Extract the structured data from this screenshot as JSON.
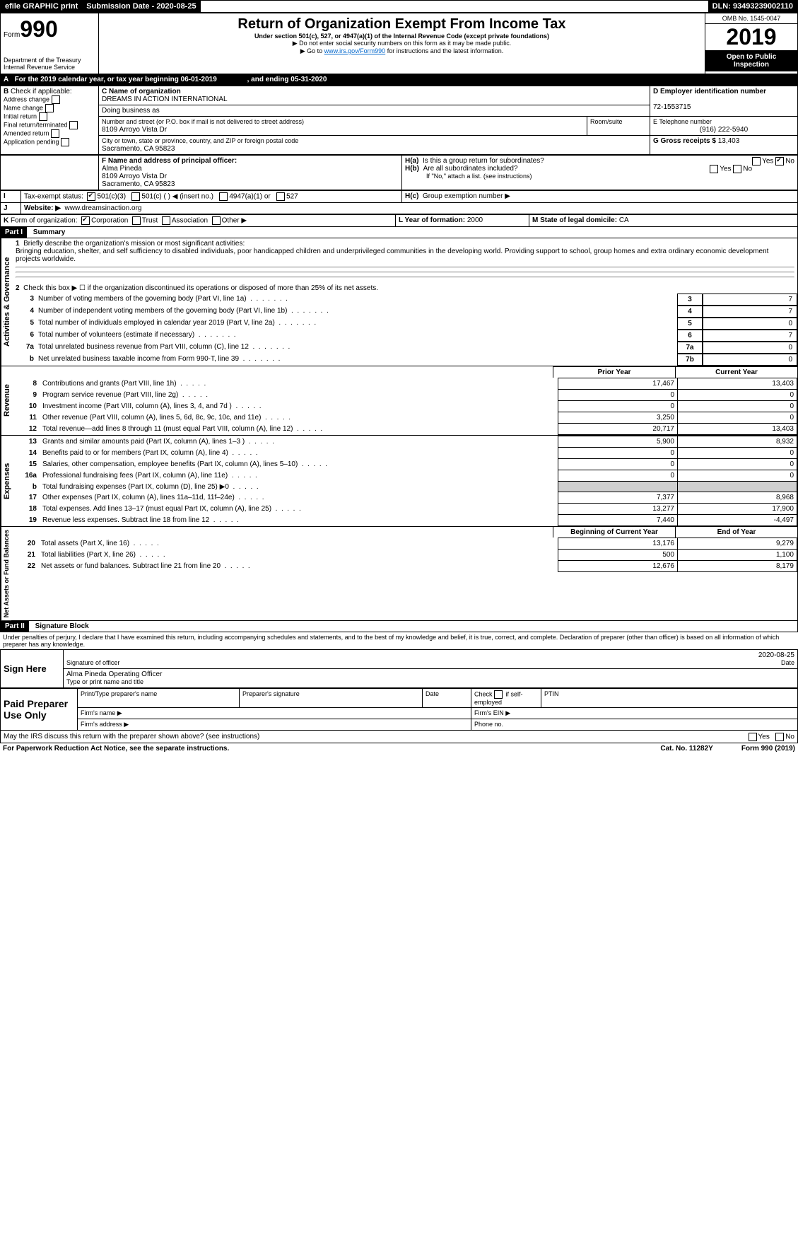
{
  "topbar": {
    "efile": "efile GRAPHIC print",
    "subdate_lbl": "Submission Date - 2020-08-25",
    "dln": "DLN: 93493239002110"
  },
  "header": {
    "form_word": "Form",
    "form_no": "990",
    "dept": "Department of the Treasury",
    "irs": "Internal Revenue Service",
    "title": "Return of Organization Exempt From Income Tax",
    "sub1": "Under section 501(c), 527, or 4947(a)(1) of the Internal Revenue Code (except private foundations)",
    "sub2": "▶ Do not enter social security numbers on this form as it may be made public.",
    "sub3a": "▶ Go to ",
    "sub3link": "www.irs.gov/Form990",
    "sub3b": " for instructions and the latest information.",
    "omb": "OMB No. 1545-0047",
    "year": "2019",
    "open": "Open to Public Inspection"
  },
  "A": {
    "text": "For the 2019 calendar year, or tax year beginning 06-01-2019",
    "mid": ", and ending 05-31-2020"
  },
  "B": {
    "label": "Check if applicable:",
    "opts": [
      "Address change",
      "Name change",
      "Initial return",
      "Final return/terminated",
      "Amended return",
      "Application pending"
    ]
  },
  "C": {
    "lbl": "C Name of organization",
    "name": "DREAMS IN ACTION INTERNATIONAL",
    "dba_lbl": "Doing business as",
    "dba": "",
    "street_lbl": "Number and street (or P.O. box if mail is not delivered to street address)",
    "street": "8109 Arroyo Vista Dr",
    "room_lbl": "Room/suite",
    "city_lbl": "City or town, state or province, country, and ZIP or foreign postal code",
    "city": "Sacramento, CA  95823"
  },
  "D": {
    "lbl": "D Employer identification number",
    "val": "72-1553715"
  },
  "E": {
    "lbl": "E Telephone number",
    "val": "(916) 222-5940"
  },
  "G": {
    "lbl": "G Gross receipts $ ",
    "val": "13,403"
  },
  "F": {
    "lbl": "F  Name and address of principal officer:",
    "name": "Alma Pineda",
    "l2": "8109 Arroyo Vista Dr",
    "l3": "Sacramento, CA  95823"
  },
  "H": {
    "a_lbl": "H(a)",
    "a_txt": "Is this a group return for subordinates?",
    "a_yes": "Yes",
    "a_no": "No",
    "b_lbl": "H(b)",
    "b_txt": "Are all subordinates included?",
    "b_note": "If \"No,\" attach a list. (see instructions)",
    "c_lbl": "H(c)",
    "c_txt": "Group exemption number ▶"
  },
  "I": {
    "lbl": "Tax-exempt status:",
    "o1": "501(c)(3)",
    "o2": "501(c) (  ) ◀ (insert no.)",
    "o3": "4947(a)(1) or",
    "o4": "527"
  },
  "J": {
    "lbl": "Website: ▶",
    "val": "www.dreamsinaction.org"
  },
  "K": {
    "lbl": "Form of organization:",
    "o1": "Corporation",
    "o2": "Trust",
    "o3": "Association",
    "o4": "Other ▶"
  },
  "L": {
    "lbl": "L Year of formation: ",
    "val": "2000"
  },
  "M": {
    "lbl": "M State of legal domicile: ",
    "val": "CA"
  },
  "partI": {
    "hdr": "Part I",
    "title": "Summary"
  },
  "summary": {
    "q1_lbl": "1",
    "q1": "Briefly describe the organization's mission or most significant activities:",
    "q1_ans": "Bringing education, shelter, and self sufficiency to disabled individuals, poor handicapped children and underprivileged communities in the developing world. Providing support to school, group homes and extra ordinary economic development projects worldwide.",
    "q2_lbl": "2",
    "q2": "Check this box ▶ ☐  if the organization discontinued its operations or disposed of more than 25% of its net assets.",
    "rows": [
      {
        "n": "3",
        "t": "Number of voting members of the governing body (Part VI, line 1a)",
        "box": "3",
        "v": "7"
      },
      {
        "n": "4",
        "t": "Number of independent voting members of the governing body (Part VI, line 1b)",
        "box": "4",
        "v": "7"
      },
      {
        "n": "5",
        "t": "Total number of individuals employed in calendar year 2019 (Part V, line 2a)",
        "box": "5",
        "v": "0"
      },
      {
        "n": "6",
        "t": "Total number of volunteers (estimate if necessary)",
        "box": "6",
        "v": "7"
      },
      {
        "n": "7a",
        "t": "Total unrelated business revenue from Part VIII, column (C), line 12",
        "box": "7a",
        "v": "0"
      },
      {
        "n": "b",
        "t": "Net unrelated business taxable income from Form 990-T, line 39",
        "box": "7b",
        "v": "0"
      }
    ]
  },
  "fin": {
    "py": "Prior Year",
    "cy": "Current Year",
    "bcy": "Beginning of Current Year",
    "eoy": "End of Year",
    "revenue": [
      {
        "n": "8",
        "t": "Contributions and grants (Part VIII, line 1h)",
        "p": "17,467",
        "c": "13,403"
      },
      {
        "n": "9",
        "t": "Program service revenue (Part VIII, line 2g)",
        "p": "0",
        "c": "0"
      },
      {
        "n": "10",
        "t": "Investment income (Part VIII, column (A), lines 3, 4, and 7d )",
        "p": "0",
        "c": "0"
      },
      {
        "n": "11",
        "t": "Other revenue (Part VIII, column (A), lines 5, 6d, 8c, 9c, 10c, and 11e)",
        "p": "3,250",
        "c": "0"
      },
      {
        "n": "12",
        "t": "Total revenue—add lines 8 through 11 (must equal Part VIII, column (A), line 12)",
        "p": "20,717",
        "c": "13,403"
      }
    ],
    "expenses": [
      {
        "n": "13",
        "t": "Grants and similar amounts paid (Part IX, column (A), lines 1–3 )",
        "p": "5,900",
        "c": "8,932"
      },
      {
        "n": "14",
        "t": "Benefits paid to or for members (Part IX, column (A), line 4)",
        "p": "0",
        "c": "0"
      },
      {
        "n": "15",
        "t": "Salaries, other compensation, employee benefits (Part IX, column (A), lines 5–10)",
        "p": "0",
        "c": "0"
      },
      {
        "n": "16a",
        "t": "Professional fundraising fees (Part IX, column (A), line 11e)",
        "p": "0",
        "c": "0"
      },
      {
        "n": "b",
        "t": "Total fundraising expenses (Part IX, column (D), line 25) ▶0",
        "p": "",
        "c": "",
        "gray": true
      },
      {
        "n": "17",
        "t": "Other expenses (Part IX, column (A), lines 11a–11d, 11f–24e)",
        "p": "7,377",
        "c": "8,968"
      },
      {
        "n": "18",
        "t": "Total expenses. Add lines 13–17 (must equal Part IX, column (A), line 25)",
        "p": "13,277",
        "c": "17,900"
      },
      {
        "n": "19",
        "t": "Revenue less expenses. Subtract line 18 from line 12",
        "p": "7,440",
        "c": "-4,497"
      }
    ],
    "netassets": [
      {
        "n": "20",
        "t": "Total assets (Part X, line 16)",
        "p": "13,176",
        "c": "9,279"
      },
      {
        "n": "21",
        "t": "Total liabilities (Part X, line 26)",
        "p": "500",
        "c": "1,100"
      },
      {
        "n": "22",
        "t": "Net assets or fund balances. Subtract line 21 from line 20",
        "p": "12,676",
        "c": "8,179"
      }
    ]
  },
  "partII": {
    "hdr": "Part II",
    "title": "Signature Block",
    "decl": "Under penalties of perjury, I declare that I have examined this return, including accompanying schedules and statements, and to the best of my knowledge and belief, it is true, correct, and complete. Declaration of preparer (other than officer) is based on all information of which preparer has any knowledge."
  },
  "sign": {
    "here": "Sign Here",
    "sig_lbl": "Signature of officer",
    "date_lbl": "Date",
    "date": "2020-08-25",
    "name": "Alma Pineda  Operating Officer",
    "name_lbl": "Type or print name and title"
  },
  "paid": {
    "title": "Paid Preparer Use Only",
    "c1": "Print/Type preparer's name",
    "c2": "Preparer's signature",
    "c3": "Date",
    "c4a": "Check",
    "c4b": "if self-employed",
    "c5": "PTIN",
    "firm_name": "Firm's name  ▶",
    "firm_ein": "Firm's EIN ▶",
    "firm_addr": "Firm's address ▶",
    "phone": "Phone no."
  },
  "footer": {
    "discuss": "May the IRS discuss this return with the preparer shown above? (see instructions)",
    "yes": "Yes",
    "no": "No",
    "pra": "For Paperwork Reduction Act Notice, see the separate instructions.",
    "cat": "Cat. No. 11282Y",
    "form": "Form 990 (2019)"
  },
  "tabs": {
    "ag": "Activities & Governance",
    "rev": "Revenue",
    "exp": "Expenses",
    "na": "Net Assets or Fund Balances"
  }
}
